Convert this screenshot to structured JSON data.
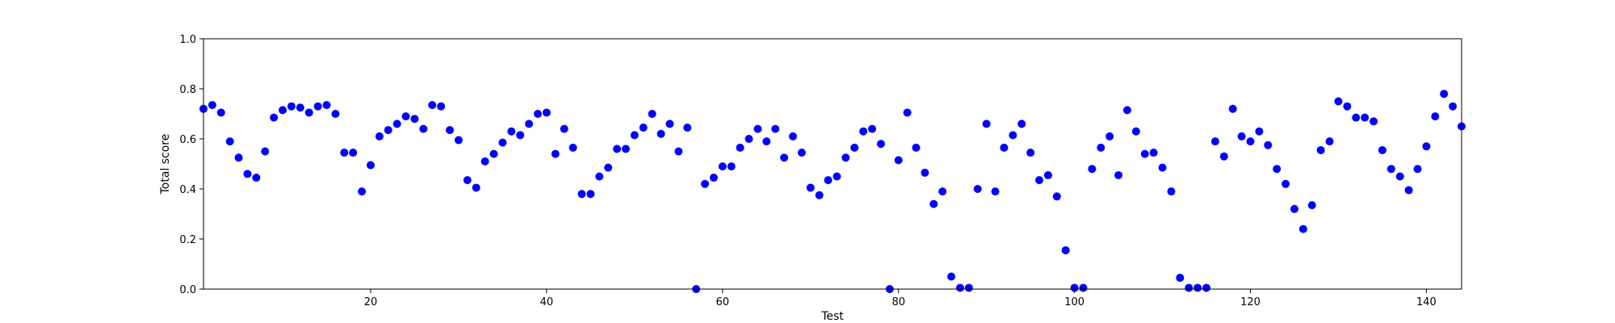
{
  "chart_data": {
    "type": "scatter",
    "title": "",
    "xlabel": "Test",
    "ylabel": "Total score",
    "xlim": [
      1,
      144
    ],
    "ylim": [
      0.0,
      1.0
    ],
    "xticks": [
      20,
      40,
      60,
      80,
      100,
      120,
      140
    ],
    "xtick_labels": [
      "20",
      "40",
      "60",
      "80",
      "100",
      "120",
      "140"
    ],
    "yticks": [
      0.0,
      0.2,
      0.4,
      0.6,
      0.8,
      1.0
    ],
    "ytick_labels": [
      "0.0",
      "0.2",
      "0.4",
      "0.6",
      "0.8",
      "1.0"
    ],
    "grid": false,
    "legend": "none",
    "marker_color": "#0000ff",
    "series": [
      {
        "x": [
          1,
          2,
          3,
          4,
          5,
          6,
          7,
          8,
          9,
          10,
          11,
          12,
          13,
          14,
          15,
          16,
          17,
          18,
          19,
          20,
          21,
          22,
          23,
          24,
          25,
          26,
          27,
          28,
          29,
          30,
          31,
          32,
          33,
          34,
          35,
          36,
          37,
          38,
          39,
          40,
          41,
          42,
          43,
          44,
          45,
          46,
          47,
          48,
          49,
          50,
          51,
          52,
          53,
          54,
          55,
          56,
          57,
          58,
          59,
          60,
          61,
          62,
          63,
          64,
          65,
          66,
          67,
          68,
          69,
          70,
          71,
          72,
          73,
          74,
          75,
          76,
          77,
          78,
          79,
          80,
          81,
          82,
          83,
          84,
          85,
          86,
          87,
          88,
          89,
          90,
          91,
          92,
          93,
          94,
          95,
          96,
          97,
          98,
          99,
          100,
          101,
          102,
          103,
          104,
          105,
          106,
          107,
          108,
          109,
          110,
          111,
          112,
          113,
          114,
          115,
          116,
          117,
          118,
          119,
          120,
          121,
          122,
          123,
          124,
          125,
          126,
          127,
          128,
          129,
          130,
          131,
          132,
          133,
          134,
          135,
          136,
          137,
          138,
          139,
          140,
          141,
          142,
          143,
          144
        ],
        "y": [
          0.72,
          0.735,
          0.705,
          0.59,
          0.525,
          0.46,
          0.445,
          0.55,
          0.685,
          0.715,
          0.73,
          0.725,
          0.705,
          0.73,
          0.735,
          0.7,
          0.545,
          0.545,
          0.39,
          0.495,
          0.61,
          0.635,
          0.66,
          0.69,
          0.68,
          0.64,
          0.735,
          0.73,
          0.635,
          0.595,
          0.435,
          0.405,
          0.51,
          0.54,
          0.585,
          0.63,
          0.615,
          0.66,
          0.7,
          0.705,
          0.54,
          0.64,
          0.565,
          0.38,
          0.38,
          0.45,
          0.485,
          0.56,
          0.56,
          0.615,
          0.645,
          0.7,
          0.62,
          0.66,
          0.55,
          0.645,
          0.0,
          0.42,
          0.445,
          0.49,
          0.49,
          0.565,
          0.6,
          0.64,
          0.59,
          0.64,
          0.525,
          0.61,
          0.545,
          0.405,
          0.375,
          0.435,
          0.45,
          0.525,
          0.565,
          0.63,
          0.64,
          0.58,
          0.0,
          0.515,
          0.705,
          0.565,
          0.465,
          0.34,
          0.39,
          0.05,
          0.005,
          0.005,
          0.4,
          0.66,
          0.39,
          0.565,
          0.615,
          0.66,
          0.545,
          0.435,
          0.455,
          0.37,
          0.155,
          0.005,
          0.005,
          0.48,
          0.565,
          0.61,
          0.455,
          0.715,
          0.63,
          0.54,
          0.545,
          0.485,
          0.39,
          0.045,
          0.005,
          0.005,
          0.005,
          0.59,
          0.53,
          0.72,
          0.61,
          0.59,
          0.63,
          0.575,
          0.48,
          0.42,
          0.32,
          0.24,
          0.335,
          0.555,
          0.59,
          0.75,
          0.73,
          0.685,
          0.685,
          0.67,
          0.555,
          0.48,
          0.45,
          0.395,
          0.48,
          0.57,
          0.69,
          0.78,
          0.73,
          0.65
        ]
      }
    ]
  }
}
